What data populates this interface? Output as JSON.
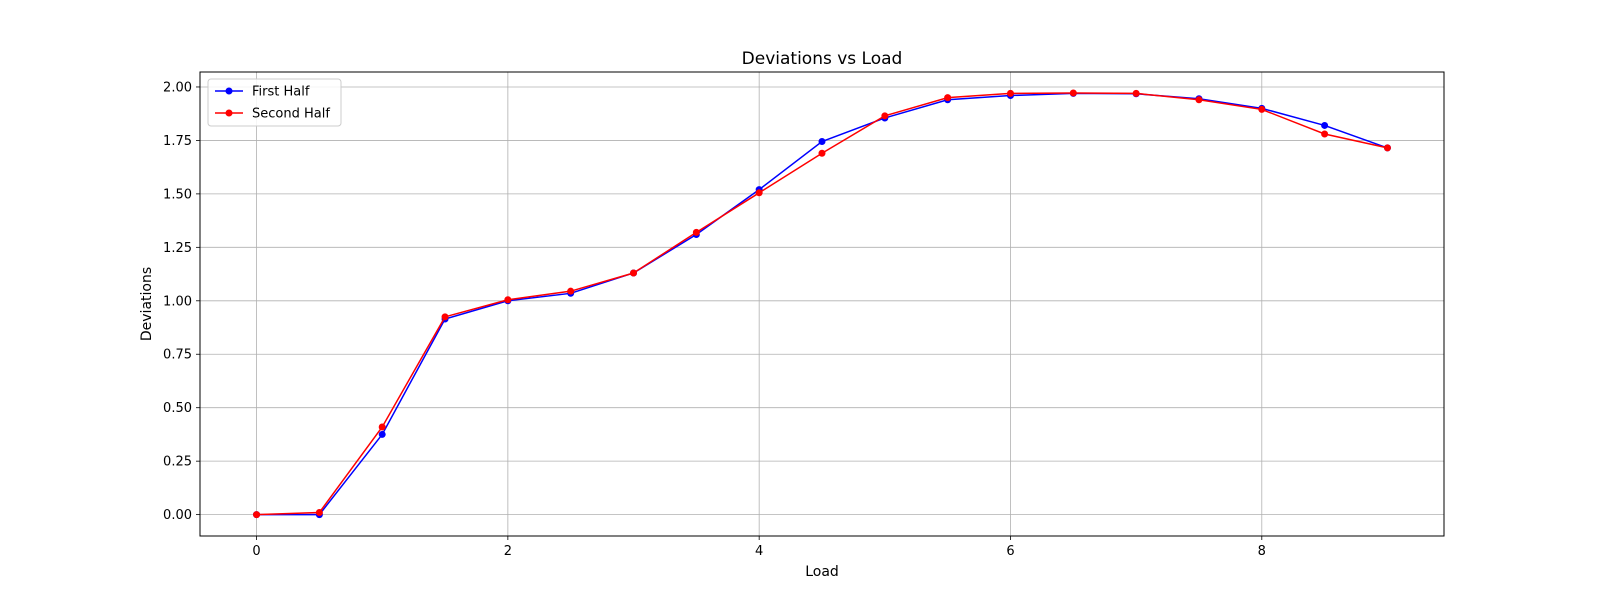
{
  "chart_data": {
    "type": "line",
    "title": "Deviations vs Load",
    "xlabel": "Load",
    "ylabel": "Deviations",
    "xlim": [
      -0.45,
      9.45
    ],
    "ylim": [
      -0.1,
      2.07
    ],
    "xticks": [
      0,
      2,
      4,
      6,
      8
    ],
    "yticks": [
      0.0,
      0.25,
      0.5,
      0.75,
      1.0,
      1.25,
      1.5,
      1.75,
      2.0
    ],
    "xtick_labels": [
      "0",
      "2",
      "4",
      "6",
      "8"
    ],
    "ytick_labels": [
      "0.00",
      "0.25",
      "0.50",
      "0.75",
      "1.00",
      "1.25",
      "1.50",
      "1.75",
      "2.00"
    ],
    "grid": true,
    "legend_position": "upper-left",
    "x": [
      0,
      0.5,
      1,
      1.5,
      2,
      2.5,
      3,
      3.5,
      4,
      4.5,
      5,
      5.5,
      6,
      6.5,
      7,
      7.5,
      8,
      8.5,
      9
    ],
    "series": [
      {
        "name": "First Half",
        "color": "#0000ff",
        "values": [
          0.0,
          0.0,
          0.375,
          0.915,
          1.0,
          1.035,
          1.13,
          1.31,
          1.52,
          1.745,
          1.855,
          1.94,
          1.96,
          1.97,
          1.968,
          1.945,
          1.9,
          1.82,
          1.715
        ]
      },
      {
        "name": "Second Half",
        "color": "#ff0000",
        "values": [
          0.0,
          0.01,
          0.41,
          0.925,
          1.005,
          1.045,
          1.13,
          1.32,
          1.505,
          1.69,
          1.865,
          1.95,
          1.97,
          1.972,
          1.97,
          1.94,
          1.895,
          1.78,
          1.715
        ]
      }
    ]
  }
}
